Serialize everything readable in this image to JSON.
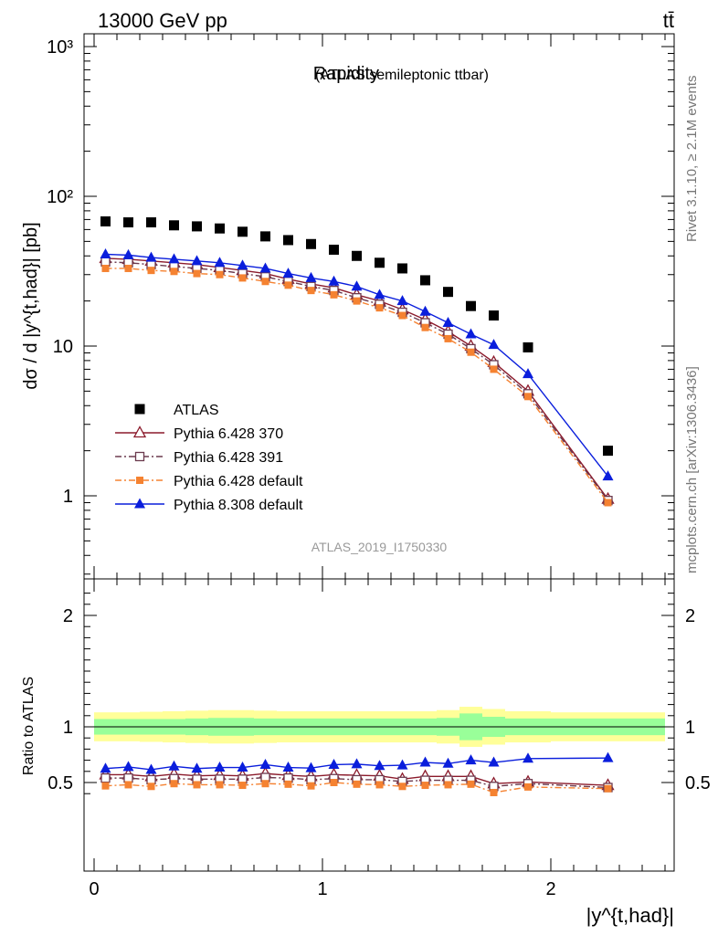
{
  "header": {
    "left": "13000 GeV pp",
    "right": "tt̄"
  },
  "side_labels": {
    "rivet": "Rivet 3.1.10, ≥ 2.1M events",
    "mcplots": "mcplots.cern.ch [arXiv:1306.3436]"
  },
  "chart_data": [
    {
      "type": "scatter",
      "title": "Rapidity",
      "subtitle": "(ATLAS semileptonic ttbar)",
      "analysis_id": "ATLAS_2019_I1750330",
      "xlabel": "|y^{t,had}|",
      "ylabel": "dσ / d |y^{t,had}| [pb]",
      "yscale": "log",
      "xlim": [
        -0.1,
        2.55
      ],
      "ylim": [
        0.3,
        1300
      ],
      "x_ticks": [
        "0",
        "1",
        "2"
      ],
      "y_ticks": [
        "1",
        "10",
        "10²",
        "10³"
      ],
      "legend_position": "lower-left",
      "x": [
        0.05,
        0.15,
        0.25,
        0.35,
        0.45,
        0.55,
        0.65,
        0.75,
        0.85,
        0.95,
        1.05,
        1.15,
        1.25,
        1.35,
        1.45,
        1.55,
        1.65,
        1.75,
        1.9,
        2.25
      ],
      "series": [
        {
          "name": "ATLAS",
          "color": "#000000",
          "marker": "square-filled",
          "values": [
            68,
            67,
            67,
            64,
            63,
            61,
            58,
            54,
            51,
            48,
            44,
            40,
            36,
            33,
            27.5,
            23,
            18.5,
            16,
            9.8,
            2.0
          ]
        },
        {
          "name": "Pythia 6.428 370",
          "color": "#8b1a2b",
          "marker": "triangle-open",
          "line": "solid",
          "values": [
            38.5,
            38.0,
            37.0,
            36.0,
            35.0,
            33.5,
            32.0,
            30.5,
            28.0,
            26.0,
            24.5,
            22.0,
            20.0,
            17.5,
            15.0,
            12.5,
            10.0,
            7.8,
            5.0,
            0.95
          ]
        },
        {
          "name": "Pythia 6.428 391",
          "color": "#6b3a4e",
          "marker": "square-open",
          "line": "dashdot",
          "values": [
            36.5,
            36.0,
            35.0,
            34.0,
            33.0,
            32.0,
            30.5,
            29.0,
            27.0,
            25.0,
            23.5,
            21.0,
            19.0,
            16.8,
            14.3,
            12.0,
            9.6,
            7.5,
            4.8,
            0.93
          ]
        },
        {
          "name": "Pythia 6.428 default",
          "color": "#f58231",
          "marker": "square-filled-small",
          "line": "dashdot",
          "values": [
            33.0,
            33.0,
            32.0,
            31.5,
            30.5,
            30.0,
            28.5,
            27.0,
            25.5,
            23.5,
            22.0,
            20.0,
            18.0,
            16.0,
            13.3,
            11.2,
            9.1,
            7.0,
            4.6,
            0.9
          ]
        },
        {
          "name": "Pythia 8.308 default",
          "color": "#0a1edc",
          "marker": "triangle-filled",
          "line": "solid",
          "values": [
            41.0,
            40.5,
            39.0,
            38.0,
            37.0,
            36.0,
            34.5,
            33.0,
            30.5,
            28.5,
            27.0,
            25.0,
            22.0,
            20.0,
            17.0,
            14.3,
            12.0,
            10.2,
            6.5,
            1.35
          ]
        }
      ]
    },
    {
      "type": "scatter",
      "ylabel": "Ratio to ATLAS",
      "ylim": [
        0.35,
        2.3
      ],
      "y_ticks": [
        "0.5",
        "1",
        "2"
      ],
      "x": [
        0.05,
        0.15,
        0.25,
        0.35,
        0.45,
        0.55,
        0.65,
        0.75,
        0.85,
        0.95,
        1.05,
        1.15,
        1.25,
        1.35,
        1.45,
        1.55,
        1.65,
        1.75,
        1.9,
        2.25
      ],
      "bands": {
        "edges": [
          0.0,
          0.1,
          0.2,
          0.3,
          0.4,
          0.5,
          0.6,
          0.7,
          0.8,
          0.9,
          1.0,
          1.1,
          1.2,
          1.3,
          1.4,
          1.5,
          1.6,
          1.7,
          1.8,
          2.0,
          2.5
        ],
        "inner_half": [
          0.07,
          0.07,
          0.07,
          0.07,
          0.075,
          0.08,
          0.08,
          0.075,
          0.075,
          0.075,
          0.075,
          0.075,
          0.075,
          0.075,
          0.075,
          0.08,
          0.12,
          0.09,
          0.075,
          0.075
        ],
        "outer_half": [
          0.13,
          0.13,
          0.135,
          0.14,
          0.145,
          0.15,
          0.15,
          0.145,
          0.14,
          0.14,
          0.14,
          0.14,
          0.14,
          0.14,
          0.14,
          0.15,
          0.18,
          0.16,
          0.14,
          0.13
        ],
        "inner_color": "#99ff99",
        "outer_color": "#ffff99"
      },
      "series": [
        {
          "name": "Pythia 6.428 370",
          "values": [
            0.57,
            0.57,
            0.555,
            0.575,
            0.56,
            0.565,
            0.56,
            0.58,
            0.565,
            0.555,
            0.57,
            0.565,
            0.56,
            0.53,
            0.555,
            0.555,
            0.555,
            0.49,
            0.505,
            0.475
          ]
        },
        {
          "name": "Pythia 6.428 391",
          "values": [
            0.54,
            0.54,
            0.525,
            0.535,
            0.53,
            0.53,
            0.53,
            0.545,
            0.54,
            0.525,
            0.535,
            0.525,
            0.525,
            0.51,
            0.52,
            0.52,
            0.52,
            0.465,
            0.49,
            0.455
          ]
        },
        {
          "name": "Pythia 6.428 default",
          "values": [
            0.47,
            0.48,
            0.465,
            0.49,
            0.48,
            0.48,
            0.475,
            0.49,
            0.485,
            0.47,
            0.5,
            0.485,
            0.48,
            0.465,
            0.475,
            0.48,
            0.485,
            0.41,
            0.46,
            0.445
          ]
        },
        {
          "name": "Pythia 8.308 default",
          "values": [
            0.625,
            0.64,
            0.615,
            0.645,
            0.625,
            0.635,
            0.635,
            0.66,
            0.635,
            0.63,
            0.66,
            0.665,
            0.65,
            0.655,
            0.68,
            0.67,
            0.7,
            0.68,
            0.715,
            0.72
          ]
        }
      ]
    }
  ]
}
